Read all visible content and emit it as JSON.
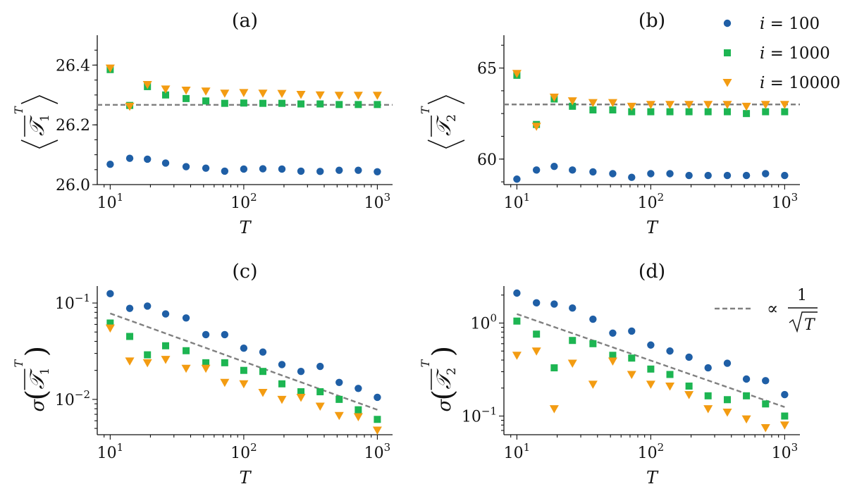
{
  "chart_data": [
    {
      "type": "scatter",
      "title": "(a)",
      "xlabel": "T",
      "ylabel_var": "𝒯",
      "ylabel_sub": "1",
      "ylabel_sup": "T",
      "xscale": "log",
      "yscale": "linear",
      "xlim": [
        8,
        1300
      ],
      "ylim": [
        26.0,
        26.5
      ],
      "xticks": [
        10,
        100,
        1000
      ],
      "xtick_base": "10",
      "xtick_exps": [
        "1",
        "2",
        "3"
      ],
      "yticks": [
        26.0,
        26.2,
        26.4
      ],
      "ytick_labels": [
        "26.0",
        "26.2",
        "26.4"
      ],
      "x": [
        10,
        14,
        19,
        26,
        37,
        52,
        72,
        100,
        139,
        193,
        268,
        373,
        518,
        720,
        1000
      ],
      "series": [
        {
          "name": "i = 100",
          "marker": "circle",
          "color": "#1f5fa6",
          "values": [
            26.068,
            26.088,
            26.085,
            26.072,
            26.06,
            26.055,
            26.045,
            26.052,
            26.053,
            26.052,
            26.045,
            26.044,
            26.048,
            26.048,
            26.043
          ]
        },
        {
          "name": "i = 1000",
          "marker": "square",
          "color": "#1db552",
          "values": [
            26.385,
            26.265,
            26.328,
            26.3,
            26.288,
            26.28,
            26.272,
            26.273,
            26.272,
            26.272,
            26.27,
            26.27,
            26.268,
            26.268,
            26.268
          ]
        },
        {
          "name": "i = 10000",
          "marker": "triangle-down",
          "color": "#f39c12",
          "values": [
            26.39,
            26.262,
            26.335,
            26.32,
            26.316,
            26.313,
            26.306,
            26.308,
            26.306,
            26.305,
            26.302,
            26.3,
            26.299,
            26.299,
            26.299
          ]
        }
      ],
      "reference_line": {
        "style": "dashed",
        "color": "#808080",
        "y": 26.267
      }
    },
    {
      "type": "scatter",
      "title": "(b)",
      "xlabel": "T",
      "ylabel_var": "𝒯",
      "ylabel_sub": "2",
      "ylabel_sup": "T",
      "xscale": "log",
      "yscale": "linear",
      "xlim": [
        8,
        1300
      ],
      "ylim": [
        58.6,
        66.8
      ],
      "xticks": [
        10,
        100,
        1000
      ],
      "xtick_base": "10",
      "xtick_exps": [
        "1",
        "2",
        "3"
      ],
      "yticks": [
        60,
        65
      ],
      "ytick_labels": [
        "60",
        "65"
      ],
      "x": [
        10,
        14,
        19,
        26,
        37,
        52,
        72,
        100,
        139,
        193,
        268,
        373,
        518,
        720,
        1000
      ],
      "series": [
        {
          "name": "i = 100",
          "marker": "circle",
          "color": "#1f5fa6",
          "values": [
            58.9,
            59.4,
            59.6,
            59.4,
            59.3,
            59.2,
            59.0,
            59.2,
            59.2,
            59.1,
            59.1,
            59.1,
            59.1,
            59.2,
            59.1
          ]
        },
        {
          "name": "i = 1000",
          "marker": "square",
          "color": "#1db552",
          "values": [
            64.6,
            61.9,
            63.3,
            62.9,
            62.7,
            62.7,
            62.6,
            62.6,
            62.6,
            62.6,
            62.6,
            62.6,
            62.5,
            62.6,
            62.6
          ]
        },
        {
          "name": "i = 10000",
          "marker": "triangle-down",
          "color": "#f39c12",
          "values": [
            64.7,
            61.8,
            63.4,
            63.2,
            63.1,
            63.1,
            62.9,
            63.0,
            63.0,
            63.0,
            63.0,
            63.0,
            62.9,
            63.0,
            63.0
          ]
        }
      ],
      "reference_line": {
        "style": "dashed",
        "color": "#808080",
        "y": 63.0
      },
      "legend": {
        "placement": "top-right",
        "entries": [
          {
            "var": "i",
            "rest": " = 100"
          },
          {
            "var": "i",
            "rest": " = 1000"
          },
          {
            "var": "i",
            "rest": " = 10000"
          }
        ]
      }
    },
    {
      "type": "scatter",
      "title": "(c)",
      "xlabel": "T",
      "ylabel_var": "𝒯",
      "ylabel_sub": "1",
      "ylabel_sup": "T",
      "ylabel_prefix": "σ",
      "xscale": "log",
      "yscale": "log",
      "xlim": [
        8,
        1300
      ],
      "ylim": [
        0.0043,
        0.15
      ],
      "xticks": [
        10,
        100,
        1000
      ],
      "xtick_base": "10",
      "xtick_exps": [
        "1",
        "2",
        "3"
      ],
      "yticks": [
        0.01,
        0.1
      ],
      "ytick_base": "10",
      "ytick_exps": [
        "−2",
        "−1"
      ],
      "x": [
        10,
        14,
        19,
        26,
        37,
        52,
        72,
        100,
        139,
        193,
        268,
        373,
        518,
        720,
        1000
      ],
      "series": [
        {
          "name": "i = 100",
          "marker": "circle",
          "color": "#1f5fa6",
          "values": [
            0.125,
            0.088,
            0.093,
            0.077,
            0.07,
            0.047,
            0.047,
            0.034,
            0.031,
            0.023,
            0.0195,
            0.022,
            0.015,
            0.013,
            0.0105
          ]
        },
        {
          "name": "i = 1000",
          "marker": "square",
          "color": "#1db552",
          "values": [
            0.062,
            0.045,
            0.029,
            0.036,
            0.032,
            0.024,
            0.024,
            0.02,
            0.0195,
            0.0145,
            0.012,
            0.012,
            0.01,
            0.0078,
            0.0062
          ]
        },
        {
          "name": "i = 10000",
          "marker": "triangle-down",
          "color": "#f39c12",
          "values": [
            0.055,
            0.025,
            0.024,
            0.026,
            0.021,
            0.021,
            0.015,
            0.0145,
            0.0118,
            0.01,
            0.0105,
            0.0085,
            0.0068,
            0.0066,
            0.0048
          ]
        }
      ],
      "fit_line": {
        "style": "dashed",
        "color": "#808080",
        "x": [
          10,
          1000
        ],
        "y": [
          0.078,
          0.0078
        ]
      }
    },
    {
      "type": "scatter",
      "title": "(d)",
      "xlabel": "T",
      "ylabel_var": "𝒯",
      "ylabel_sub": "2",
      "ylabel_sup": "T",
      "ylabel_prefix": "σ",
      "xscale": "log",
      "yscale": "log",
      "xlim": [
        8,
        1300
      ],
      "ylim": [
        0.063,
        2.5
      ],
      "xticks": [
        10,
        100,
        1000
      ],
      "xtick_base": "10",
      "xtick_exps": [
        "1",
        "2",
        "3"
      ],
      "yticks": [
        0.1,
        1
      ],
      "ytick_base": "10",
      "ytick_exps": [
        "−1",
        "0"
      ],
      "x": [
        10,
        14,
        19,
        26,
        37,
        52,
        72,
        100,
        139,
        193,
        268,
        373,
        518,
        720,
        1000
      ],
      "series": [
        {
          "name": "i = 100",
          "marker": "circle",
          "color": "#1f5fa6",
          "values": [
            2.1,
            1.65,
            1.6,
            1.45,
            1.1,
            0.78,
            0.82,
            0.58,
            0.5,
            0.43,
            0.33,
            0.37,
            0.25,
            0.24,
            0.17
          ]
        },
        {
          "name": "i = 1000",
          "marker": "square",
          "color": "#1db552",
          "values": [
            1.05,
            0.76,
            0.33,
            0.65,
            0.6,
            0.45,
            0.42,
            0.32,
            0.28,
            0.21,
            0.165,
            0.15,
            0.165,
            0.135,
            0.1
          ]
        },
        {
          "name": "i = 10000",
          "marker": "triangle-down",
          "color": "#f39c12",
          "values": [
            0.45,
            0.5,
            0.12,
            0.37,
            0.22,
            0.39,
            0.28,
            0.22,
            0.21,
            0.17,
            0.12,
            0.11,
            0.093,
            0.075,
            0.08
          ]
        }
      ],
      "fit_line": {
        "style": "dashed",
        "color": "#808080",
        "x": [
          10,
          1000
        ],
        "y": [
          1.25,
          0.125
        ]
      },
      "legend": {
        "placement": "top-right",
        "entries": [
          {
            "prefix": "∝",
            "num": "1",
            "sqrt_var": "T"
          }
        ]
      }
    }
  ]
}
